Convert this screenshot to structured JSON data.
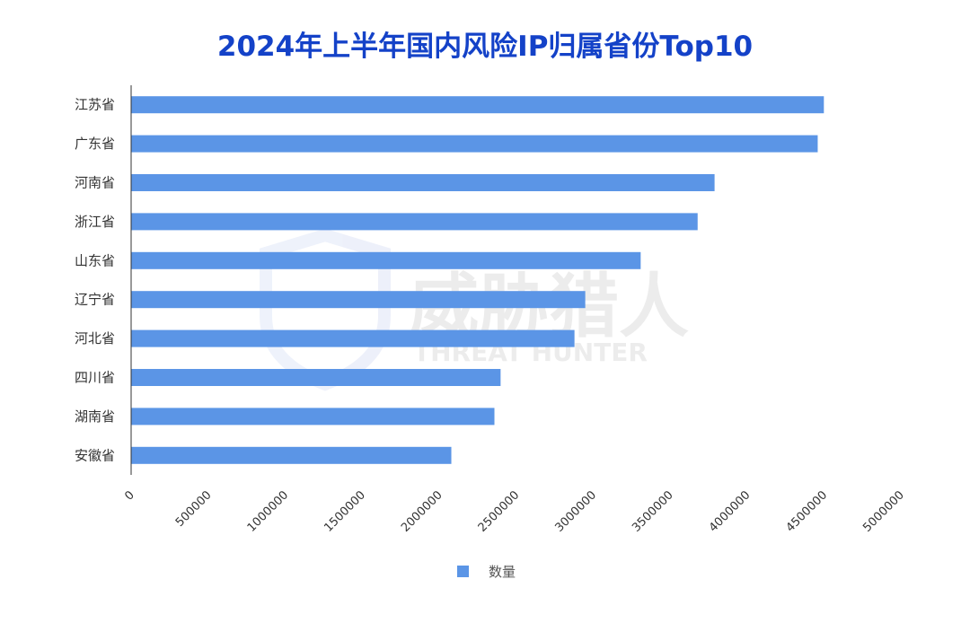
{
  "chart_data": {
    "type": "bar",
    "orientation": "horizontal",
    "title": "2024年上半年国内风险IP归属省份Top10",
    "categories": [
      "江苏省",
      "广东省",
      "河南省",
      "浙江省",
      "山东省",
      "辽宁省",
      "河北省",
      "四川省",
      "湖南省",
      "安徽省"
    ],
    "series": [
      {
        "name": "数量",
        "color": "#5b95e6",
        "values": [
          4500000,
          4460000,
          3790000,
          3680000,
          3310000,
          2950000,
          2880000,
          2400000,
          2360000,
          2080000
        ]
      }
    ],
    "xlim": [
      0,
      5000000
    ],
    "x_ticks": [
      "0",
      "500000",
      "1000000",
      "1500000",
      "2000000",
      "2500000",
      "3000000",
      "3500000",
      "4000000",
      "4500000",
      "5000000"
    ],
    "grid": false,
    "legend_position": "bottom"
  },
  "watermark": {
    "brand": "威胁猎人",
    "brand_en": "THREAT HUNTER"
  }
}
